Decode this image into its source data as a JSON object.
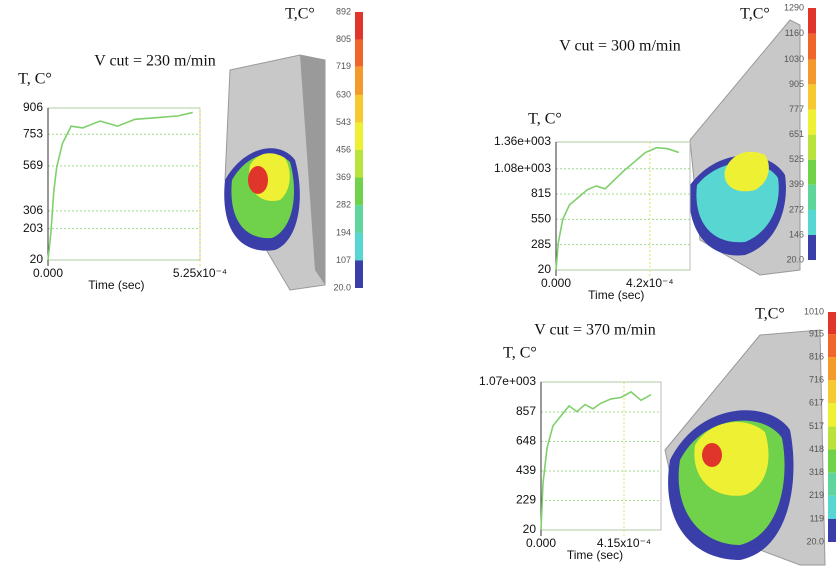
{
  "chart_data": [
    {
      "type": "line",
      "title": "V cut = 230 m/min",
      "y_label": "T, C°",
      "x_label": "Time (sec)",
      "x": [
        0,
        1e-05,
        2e-05,
        3e-05,
        5e-05,
        8e-05,
        0.00012,
        0.00018,
        0.00024,
        0.0003,
        0.00038,
        0.00045,
        0.0005
      ],
      "series": [
        {
          "color": "#7fd06c",
          "values": [
            20,
            180,
            420,
            560,
            700,
            800,
            790,
            830,
            800,
            840,
            850,
            860,
            880
          ]
        }
      ],
      "xlim": [
        0,
        0.000525
      ],
      "xticks": [
        {
          "value": 0,
          "label": "0.000"
        },
        {
          "value": 0.000525,
          "label": "5.25x10⁻⁴"
        }
      ],
      "ylim": [
        20,
        906
      ],
      "yticks": [
        20,
        203,
        306,
        569,
        753,
        906
      ],
      "grid": true,
      "colorbar": {
        "title": "T,C°",
        "lim": [
          20,
          892
        ],
        "ticks": [
          892,
          805,
          719,
          630,
          543,
          456,
          369,
          282,
          194,
          107,
          {
            "value": 20,
            "label": "20.0"
          }
        ],
        "colors": [
          "#e0352b",
          "#f0652a",
          "#f49a2c",
          "#f6c930",
          "#eef034",
          "#b8e23c",
          "#6fd24a",
          "#5ed59a",
          "#58d6d2",
          "#3a3ea8"
        ]
      }
    },
    {
      "type": "line",
      "title": "V cut = 300 m/min",
      "y_label": "T, C°",
      "x_label": "Time (sec)",
      "x": [
        0,
        1e-05,
        3e-05,
        6e-05,
        0.0001,
        0.00014,
        0.00018,
        0.00022,
        0.00026,
        0.0003,
        0.00035,
        0.0004,
        0.00045,
        0.0005,
        0.00055
      ],
      "series": [
        {
          "color": "#7fd06c",
          "values": [
            20,
            300,
            550,
            700,
            780,
            860,
            900,
            870,
            960,
            1050,
            1150,
            1250,
            1300,
            1290,
            1250
          ]
        }
      ],
      "xlim": [
        0,
        0.0006
      ],
      "xticks": [
        {
          "value": 0,
          "label": "0.000"
        },
        {
          "value": 0.00042,
          "label": "4.2x10⁻⁴"
        }
      ],
      "ylim": [
        20,
        1360
      ],
      "yticks": [
        20,
        285,
        550,
        815,
        {
          "value": 1080,
          "label": "1.08e+003"
        },
        {
          "value": 1360,
          "label": "1.36e+003"
        }
      ],
      "grid": true,
      "colorbar": {
        "title": "T,C°",
        "lim": [
          20,
          1290
        ],
        "ticks": [
          1290,
          1160,
          1030,
          905,
          777,
          651,
          525,
          399,
          272,
          146,
          {
            "value": 20,
            "label": "20.0"
          }
        ],
        "colors": [
          "#e0352b",
          "#f0652a",
          "#f49a2c",
          "#f6c930",
          "#eef034",
          "#b8e23c",
          "#6fd24a",
          "#5ed59a",
          "#58d6d2",
          "#3a3ea8"
        ]
      }
    },
    {
      "type": "line",
      "title": "V cut = 370 m/min",
      "y_label": "T, C°",
      "x_label": "Time (sec)",
      "x": [
        0,
        1e-05,
        3e-05,
        6e-05,
        0.0001,
        0.00014,
        0.00018,
        0.00022,
        0.00026,
        0.0003,
        0.00035,
        0.0004,
        0.00045,
        0.0005,
        0.00055
      ],
      "series": [
        {
          "color": "#7fd06c",
          "values": [
            20,
            350,
            600,
            760,
            830,
            900,
            860,
            910,
            880,
            920,
            950,
            960,
            1000,
            940,
            980
          ]
        }
      ],
      "xlim": [
        0,
        0.0006
      ],
      "xticks": [
        {
          "value": 0,
          "label": "0.000"
        },
        {
          "value": 0.000415,
          "label": "4.15x10⁻⁴"
        }
      ],
      "ylim": [
        20,
        1070
      ],
      "yticks": [
        20,
        229,
        439,
        648,
        857,
        {
          "value": 1070,
          "label": "1.07e+003"
        }
      ],
      "grid": true,
      "colorbar": {
        "title": "T,C°",
        "lim": [
          20,
          1010
        ],
        "ticks": [
          1010,
          915,
          816,
          716,
          617,
          517,
          418,
          318,
          219,
          119,
          {
            "value": 20,
            "label": "20.0"
          }
        ],
        "colors": [
          "#e0352b",
          "#f0652a",
          "#f49a2c",
          "#f6c930",
          "#eef034",
          "#b8e23c",
          "#6fd24a",
          "#5ed59a",
          "#58d6d2",
          "#3a3ea8"
        ]
      }
    }
  ]
}
